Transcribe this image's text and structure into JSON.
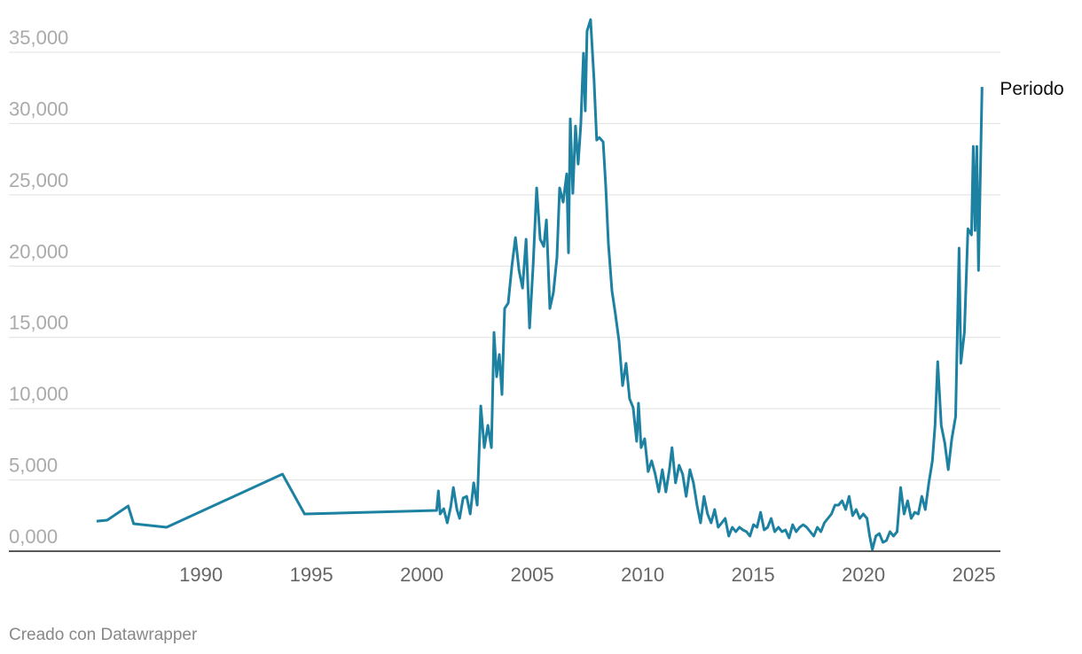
{
  "chart_data": {
    "type": "line",
    "x": [
      1985.27,
      1985.75,
      1986.7,
      1986.95,
      1988.44,
      1993.69,
      1994.69,
      2000.67,
      2000.75,
      2000.83,
      2000.99,
      2001.15,
      2001.31,
      2001.43,
      2001.59,
      2001.71,
      2001.87,
      2002.03,
      2002.19,
      2002.35,
      2002.51,
      2002.67,
      2002.83,
      2002.99,
      2003.15,
      2003.27,
      2003.39,
      2003.51,
      2003.63,
      2003.75,
      2003.91,
      2004.08,
      2004.24,
      2004.4,
      2004.56,
      2004.72,
      2004.88,
      2005.04,
      2005.2,
      2005.36,
      2005.52,
      2005.64,
      2005.8,
      2005.96,
      2006.12,
      2006.24,
      2006.4,
      2006.56,
      2006.64,
      2006.72,
      2006.84,
      2006.96,
      2007.08,
      2007.2,
      2007.32,
      2007.4,
      2007.48,
      2007.64,
      2007.8,
      2007.92,
      2008.04,
      2008.21,
      2008.33,
      2008.45,
      2008.61,
      2008.77,
      2008.93,
      2009.09,
      2009.25,
      2009.41,
      2009.57,
      2009.73,
      2009.81,
      2009.93,
      2010.09,
      2010.25,
      2010.41,
      2010.57,
      2010.73,
      2010.89,
      2011.05,
      2011.21,
      2011.33,
      2011.49,
      2011.65,
      2011.81,
      2011.97,
      2012.14,
      2012.3,
      2012.46,
      2012.62,
      2012.78,
      2012.94,
      2013.1,
      2013.26,
      2013.42,
      2013.58,
      2013.74,
      2013.9,
      2014.06,
      2014.22,
      2014.38,
      2014.54,
      2014.7,
      2014.86,
      2015.02,
      2015.18,
      2015.34,
      2015.5,
      2015.66,
      2015.82,
      2015.98,
      2016.15,
      2016.31,
      2016.47,
      2016.63,
      2016.79,
      2016.95,
      2017.11,
      2017.27,
      2017.43,
      2017.59,
      2017.75,
      2017.91,
      2018.07,
      2018.23,
      2018.39,
      2018.55,
      2018.71,
      2018.87,
      2019.03,
      2019.19,
      2019.35,
      2019.51,
      2019.67,
      2019.83,
      2019.99,
      2020.16,
      2020.28,
      2020.4,
      2020.56,
      2020.72,
      2020.88,
      2021.04,
      2021.2,
      2021.36,
      2021.52,
      2021.68,
      2021.84,
      2022.0,
      2022.16,
      2022.32,
      2022.48,
      2022.64,
      2022.8,
      2022.96,
      2023.12,
      2023.24,
      2023.36,
      2023.52,
      2023.68,
      2023.84,
      2024.0,
      2024.17,
      2024.33,
      2024.41,
      2024.57,
      2024.73,
      2024.89,
      2024.97,
      2025.05,
      2025.13,
      2025.21,
      2025.37
    ],
    "series": [
      {
        "name": "Periodo",
        "color": "#1d81a2",
        "values": [
          2110,
          2175,
          3170,
          1930,
          1680,
          5410,
          2610,
          2860,
          4230,
          2610,
          2980,
          1990,
          3110,
          4470,
          2920,
          2300,
          3730,
          3850,
          2610,
          4790,
          3230,
          10190,
          7270,
          8830,
          7270,
          15350,
          12240,
          13800,
          11000,
          17030,
          17400,
          20010,
          22000,
          19700,
          18460,
          21880,
          15660,
          20010,
          25480,
          21880,
          21380,
          23240,
          17030,
          18150,
          20630,
          25480,
          24490,
          26480,
          20940,
          30330,
          25110,
          29830,
          27160,
          29960,
          34930,
          30890,
          36480,
          37290,
          33060,
          28840,
          29020,
          28710,
          25610,
          21570,
          18270,
          16590,
          14730,
          11620,
          13180,
          10690,
          10070,
          7710,
          10380,
          7270,
          7890,
          5590,
          6340,
          5410,
          4160,
          5720,
          4160,
          5720,
          7270,
          4790,
          6030,
          5410,
          3850,
          5720,
          4790,
          3230,
          1990,
          3850,
          2610,
          1990,
          2920,
          1680,
          1990,
          2300,
          1060,
          1680,
          1370,
          1680,
          1490,
          1370,
          1060,
          1860,
          1680,
          2730,
          1490,
          1680,
          2300,
          1370,
          1680,
          1370,
          1490,
          930,
          1860,
          1370,
          1680,
          1860,
          1680,
          1370,
          1060,
          1680,
          1370,
          1990,
          2300,
          2610,
          3230,
          3230,
          3540,
          2920,
          3850,
          2490,
          2920,
          2300,
          2610,
          2300,
          1060,
          120,
          1060,
          1240,
          620,
          750,
          1370,
          1060,
          1370,
          4470,
          2610,
          3540,
          2300,
          2730,
          2610,
          3850,
          2920,
          4790,
          6340,
          8830,
          13300,
          8830,
          7580,
          5720,
          7890,
          9450,
          21260,
          13180,
          15350,
          22620,
          22190,
          28400,
          22500,
          28400,
          19700,
          32570
        ]
      }
    ],
    "xlim": [
      1981.3,
      2026.2
    ],
    "ylim": [
      0,
      35000
    ],
    "xticks": [
      1990,
      1995,
      2000,
      2005,
      2010,
      2015,
      2020,
      2025
    ],
    "yticks": [
      {
        "value": 0,
        "label": "0,000"
      },
      {
        "value": 5000,
        "label": "5,000"
      },
      {
        "value": 10000,
        "label": "10,000"
      },
      {
        "value": 15000,
        "label": "15,000"
      },
      {
        "value": 20000,
        "label": "20,000"
      },
      {
        "value": 25000,
        "label": "25,000"
      },
      {
        "value": 30000,
        "label": "30,000"
      },
      {
        "value": 35000,
        "label": "35,000"
      }
    ],
    "grid": true,
    "credit": "Creado con Datawrapper"
  }
}
